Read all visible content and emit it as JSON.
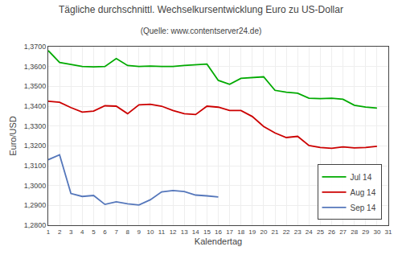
{
  "chart_data": {
    "type": "line",
    "title": "Tägliche durchschnittl. Wechselkursentwicklung Euro zu US-Dollar",
    "subtitle": "(Quelle: www.contentserver24.de)",
    "x_label": "Kalendertag",
    "y_label": "Euro/USD",
    "x": [
      1,
      2,
      3,
      4,
      5,
      6,
      7,
      8,
      9,
      10,
      11,
      12,
      13,
      14,
      15,
      16,
      17,
      18,
      19,
      20,
      21,
      22,
      23,
      24,
      25,
      26,
      27,
      28,
      29,
      30,
      31
    ],
    "series": [
      {
        "name": "Jul 14",
        "color": "#00aa00",
        "values": [
          1.368,
          1.362,
          1.361,
          1.36,
          1.3598,
          1.36,
          1.364,
          1.3605,
          1.36,
          1.3602,
          1.36,
          1.36,
          1.3605,
          1.361,
          1.3612,
          1.353,
          1.351,
          1.354,
          1.3545,
          1.3548,
          1.348,
          1.347,
          1.3465,
          1.344,
          1.3438,
          1.344,
          1.3435,
          1.3405,
          1.3395,
          1.339,
          null
        ]
      },
      {
        "name": "Aug 14",
        "color": "#cc0000",
        "values": [
          1.3425,
          1.342,
          1.3393,
          1.337,
          1.3375,
          1.3402,
          1.34,
          1.3362,
          1.3407,
          1.341,
          1.34,
          1.3378,
          1.3362,
          1.3358,
          1.34,
          1.3395,
          1.3378,
          1.3378,
          1.3348,
          1.3298,
          1.3265,
          1.3242,
          1.3248,
          1.3202,
          1.3192,
          1.3188,
          1.3195,
          1.319,
          1.3192,
          1.3198,
          null
        ]
      },
      {
        "name": "Sep 14",
        "color": "#5577bb",
        "values": [
          1.313,
          1.3155,
          1.296,
          1.2945,
          1.295,
          1.2905,
          1.2918,
          1.2908,
          1.2902,
          1.2928,
          1.2968,
          1.2975,
          1.297,
          1.2952,
          1.2948,
          1.2942,
          null,
          null,
          null,
          null,
          null,
          null,
          null,
          null,
          null,
          null,
          null,
          null,
          null,
          null,
          null
        ]
      }
    ],
    "xlim": [
      1,
      31
    ],
    "xticks": [
      1,
      2,
      3,
      4,
      5,
      6,
      7,
      8,
      9,
      10,
      11,
      12,
      13,
      14,
      15,
      16,
      17,
      18,
      19,
      20,
      21,
      22,
      23,
      24,
      25,
      26,
      27,
      28,
      29,
      30,
      31
    ],
    "ylim": [
      1.28,
      1.37
    ],
    "yticks": [
      {
        "value": 1.28,
        "label": "1,2800"
      },
      {
        "value": 1.29,
        "label": "1,2900"
      },
      {
        "value": 1.3,
        "label": "1,3000"
      },
      {
        "value": 1.31,
        "label": "1,3100"
      },
      {
        "value": 1.32,
        "label": "1,3200"
      },
      {
        "value": 1.33,
        "label": "1,3300"
      },
      {
        "value": 1.34,
        "label": "1,3400"
      },
      {
        "value": 1.35,
        "label": "1,3500"
      },
      {
        "value": 1.36,
        "label": "1,3600"
      },
      {
        "value": 1.37,
        "label": "1,3700"
      }
    ],
    "grid": true,
    "legend": "lower right"
  }
}
